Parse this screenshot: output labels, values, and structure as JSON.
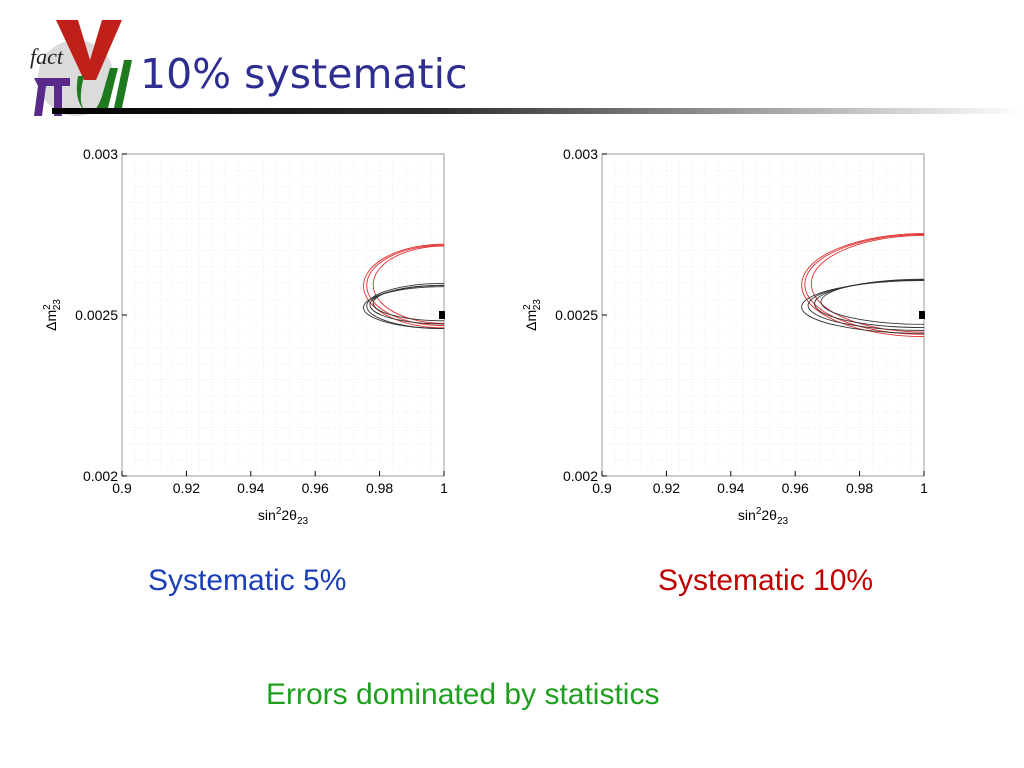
{
  "slide": {
    "title": "10% systematic",
    "note": "Errors dominated by statistics",
    "logo_text": "fact",
    "colors": {
      "title": "#2e2e91",
      "note": "#1f9f1f"
    }
  },
  "chart_data": [
    {
      "type": "contour",
      "caption": "Systematic 5%",
      "caption_color": "#1b3fb8",
      "xlim": [
        0.9,
        1.0
      ],
      "ylim": [
        0.002,
        0.003
      ],
      "xticks": [
        "0.9",
        "0.92",
        "0.94",
        "0.96",
        "0.98",
        "1"
      ],
      "yticks": [
        "0.003",
        "0.0025",
        "0.002"
      ],
      "xlabel": {
        "base": "sin",
        "sup": "2",
        "mid": "2θ",
        "sub": "23"
      },
      "ylabel": {
        "base": "Δm",
        "sup": "2",
        "sub": "23"
      },
      "grid": true,
      "best_fit": {
        "x": 1.0,
        "y": 0.0025
      },
      "series": [
        {
          "color": "#e03030",
          "contours": [
            {
              "x_min": 0.975,
              "y_center": 0.00259,
              "y_half": 0.00013
            },
            {
              "x_min": 0.976,
              "y_center": 0.002592,
              "y_half": 0.000125
            },
            {
              "x_min": 0.978,
              "y_center": 0.002594,
              "y_half": 0.00012
            }
          ]
        },
        {
          "color": "#333333",
          "contours": [
            {
              "x_min": 0.975,
              "y_center": 0.002523,
              "y_half": 6.5e-05
            },
            {
              "x_min": 0.976,
              "y_center": 0.002528,
              "y_half": 7e-05
            },
            {
              "x_min": 0.977,
              "y_center": 0.002532,
              "y_half": 6e-05
            },
            {
              "x_min": 0.978,
              "y_center": 0.002537,
              "y_half": 5.5e-05
            }
          ]
        }
      ]
    },
    {
      "type": "contour",
      "caption": "Systematic 10%",
      "caption_color": "#c00000",
      "xlim": [
        0.9,
        1.0
      ],
      "ylim": [
        0.002,
        0.003
      ],
      "xticks": [
        "0.9",
        "0.92",
        "0.94",
        "0.96",
        "0.98",
        "1"
      ],
      "yticks": [
        "0.003",
        "0.0025",
        "0.002"
      ],
      "xlabel": {
        "base": "sin",
        "sup": "2",
        "mid": "2θ",
        "sub": "23"
      },
      "ylabel": {
        "base": "Δm",
        "sup": "2",
        "sub": "23"
      },
      "grid": true,
      "best_fit": {
        "x": 1.0,
        "y": 0.0025
      },
      "series": [
        {
          "color": "#e03030",
          "contours": [
            {
              "x_min": 0.962,
              "y_center": 0.002593,
              "y_half": 0.00016
            },
            {
              "x_min": 0.963,
              "y_center": 0.002595,
              "y_half": 0.000155
            },
            {
              "x_min": 0.965,
              "y_center": 0.002597,
              "y_half": 0.00015
            }
          ]
        },
        {
          "color": "#333333",
          "contours": [
            {
              "x_min": 0.962,
              "y_center": 0.002525,
              "y_half": 8.2e-05
            },
            {
              "x_min": 0.964,
              "y_center": 0.00253,
              "y_half": 7.8e-05
            },
            {
              "x_min": 0.966,
              "y_center": 0.002535,
              "y_half": 7.4e-05
            },
            {
              "x_min": 0.968,
              "y_center": 0.002541,
              "y_half": 7e-05
            }
          ]
        }
      ]
    }
  ]
}
